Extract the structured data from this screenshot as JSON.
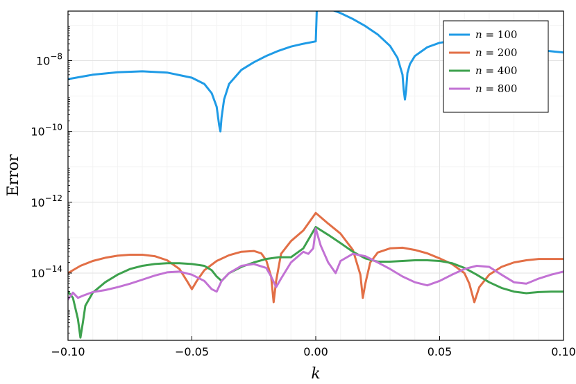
{
  "chart_data": {
    "type": "line",
    "title": "",
    "xlabel": "k",
    "ylabel": "Error",
    "yscale": "log",
    "xlim": [
      -0.1,
      0.1
    ],
    "ylim_log10": [
      -15.9,
      -6.6
    ],
    "grid": true,
    "legend_position": "top-right",
    "x_ticks": [
      -0.1,
      -0.05,
      0.0,
      0.05,
      0.1
    ],
    "x_tick_labels": [
      "−0.10",
      "−0.05",
      "0.00",
      "0.05",
      "0.10"
    ],
    "y_ticks": [
      {
        "base": "10",
        "exp": "−8",
        "value": 1e-08
      },
      {
        "base": "10",
        "exp": "−10",
        "value": 1e-10
      },
      {
        "base": "10",
        "exp": "−12",
        "value": 1e-12
      },
      {
        "base": "10",
        "exp": "−14",
        "value": 1e-14
      }
    ],
    "series": [
      {
        "name": "n = 100",
        "legend_var": "n",
        "legend_eq": " = 100",
        "color": "#1f9be6",
        "points": [
          [
            -0.1,
            3e-09
          ],
          [
            -0.09,
            4e-09
          ],
          [
            -0.08,
            4.7e-09
          ],
          [
            -0.07,
            5e-09
          ],
          [
            -0.06,
            4.6e-09
          ],
          [
            -0.05,
            3.3e-09
          ],
          [
            -0.045,
            2.2e-09
          ],
          [
            -0.042,
            1.2e-09
          ],
          [
            -0.04,
            5e-10
          ],
          [
            -0.039,
            1.5e-10
          ],
          [
            -0.0385,
            1e-10
          ],
          [
            -0.038,
            2.5e-10
          ],
          [
            -0.037,
            8e-10
          ],
          [
            -0.035,
            2.2e-09
          ],
          [
            -0.03,
            5.5e-09
          ],
          [
            -0.025,
            9e-09
          ],
          [
            -0.02,
            1.35e-08
          ],
          [
            -0.015,
            1.9e-08
          ],
          [
            -0.01,
            2.5e-08
          ],
          [
            -0.005,
            3e-08
          ],
          [
            0.0,
            3.5e-08
          ],
          [
            0.0005,
            4e-07
          ],
          [
            0.005,
            3e-07
          ],
          [
            0.01,
            2.2e-07
          ],
          [
            0.015,
            1.5e-07
          ],
          [
            0.02,
            9.5e-08
          ],
          [
            0.025,
            5.5e-08
          ],
          [
            0.03,
            2.6e-08
          ],
          [
            0.033,
            1.2e-08
          ],
          [
            0.035,
            4e-09
          ],
          [
            0.0355,
            1.5e-09
          ],
          [
            0.036,
            8e-10
          ],
          [
            0.0365,
            1.5e-09
          ],
          [
            0.037,
            4.5e-09
          ],
          [
            0.038,
            8e-09
          ],
          [
            0.04,
            1.35e-08
          ],
          [
            0.045,
            2.4e-08
          ],
          [
            0.05,
            3.2e-08
          ],
          [
            0.055,
            3.6e-08
          ],
          [
            0.06,
            3.6e-08
          ],
          [
            0.065,
            3.4e-08
          ],
          [
            0.07,
            3e-08
          ],
          [
            0.08,
            2.4e-08
          ],
          [
            0.09,
            2e-08
          ],
          [
            0.1,
            1.7e-08
          ]
        ]
      },
      {
        "name": "n = 200",
        "legend_var": "n",
        "legend_eq": " = 200",
        "color": "#e26f46",
        "points": [
          [
            -0.1,
            1e-14
          ],
          [
            -0.095,
            1.6e-14
          ],
          [
            -0.09,
            2.2e-14
          ],
          [
            -0.085,
            2.7e-14
          ],
          [
            -0.08,
            3.1e-14
          ],
          [
            -0.075,
            3.3e-14
          ],
          [
            -0.07,
            3.3e-14
          ],
          [
            -0.065,
            3e-14
          ],
          [
            -0.06,
            2.3e-14
          ],
          [
            -0.055,
            1.3e-14
          ],
          [
            -0.052,
            6e-15
          ],
          [
            -0.05,
            3.5e-15
          ],
          [
            -0.048,
            6e-15
          ],
          [
            -0.045,
            1.2e-14
          ],
          [
            -0.04,
            2.2e-14
          ],
          [
            -0.035,
            3.2e-14
          ],
          [
            -0.03,
            4e-14
          ],
          [
            -0.025,
            4.2e-14
          ],
          [
            -0.022,
            3.6e-14
          ],
          [
            -0.02,
            2.3e-14
          ],
          [
            -0.018,
            8e-15
          ],
          [
            -0.017,
            1.5e-15
          ],
          [
            -0.016,
            6e-15
          ],
          [
            -0.014,
            3.5e-14
          ],
          [
            -0.01,
            8e-14
          ],
          [
            -0.005,
            1.6e-13
          ],
          [
            0.0,
            5e-13
          ],
          [
            0.005,
            2.5e-13
          ],
          [
            0.01,
            1.3e-13
          ],
          [
            0.015,
            4.5e-14
          ],
          [
            0.018,
            9e-15
          ],
          [
            0.019,
            2e-15
          ],
          [
            0.02,
            5e-15
          ],
          [
            0.022,
            2e-14
          ],
          [
            0.025,
            3.8e-14
          ],
          [
            0.03,
            5e-14
          ],
          [
            0.035,
            5.2e-14
          ],
          [
            0.04,
            4.5e-14
          ],
          [
            0.045,
            3.6e-14
          ],
          [
            0.05,
            2.6e-14
          ],
          [
            0.055,
            1.8e-14
          ],
          [
            0.06,
            1e-14
          ],
          [
            0.062,
            5e-15
          ],
          [
            0.064,
            1.5e-15
          ],
          [
            0.066,
            4e-15
          ],
          [
            0.07,
            9e-15
          ],
          [
            0.075,
            1.5e-14
          ],
          [
            0.08,
            2e-14
          ],
          [
            0.085,
            2.3e-14
          ],
          [
            0.09,
            2.5e-14
          ],
          [
            0.1,
            2.5e-14
          ]
        ]
      },
      {
        "name": "n = 400",
        "legend_var": "n",
        "legend_eq": " = 400",
        "color": "#3da14d",
        "points": [
          [
            -0.1,
            3e-15
          ],
          [
            -0.098,
            2e-15
          ],
          [
            -0.096,
            5e-16
          ],
          [
            -0.095,
            1.5e-16
          ],
          [
            -0.094,
            4e-16
          ],
          [
            -0.093,
            1.2e-15
          ],
          [
            -0.09,
            2.8e-15
          ],
          [
            -0.085,
            5.5e-15
          ],
          [
            -0.08,
            9e-15
          ],
          [
            -0.075,
            1.3e-14
          ],
          [
            -0.07,
            1.6e-14
          ],
          [
            -0.065,
            1.8e-14
          ],
          [
            -0.06,
            1.9e-14
          ],
          [
            -0.055,
            1.9e-14
          ],
          [
            -0.05,
            1.8e-14
          ],
          [
            -0.045,
            1.6e-14
          ],
          [
            -0.042,
            1.2e-14
          ],
          [
            -0.04,
            8e-15
          ],
          [
            -0.038,
            6e-15
          ],
          [
            -0.035,
            1e-14
          ],
          [
            -0.03,
            1.5e-14
          ],
          [
            -0.025,
            2e-14
          ],
          [
            -0.02,
            2.5e-14
          ],
          [
            -0.015,
            2.8e-14
          ],
          [
            -0.01,
            2.8e-14
          ],
          [
            -0.005,
            5e-14
          ],
          [
            0.0,
            2e-13
          ],
          [
            0.005,
            1.2e-13
          ],
          [
            0.01,
            7e-14
          ],
          [
            0.015,
            4e-14
          ],
          [
            0.02,
            2.6e-14
          ],
          [
            0.025,
            2.1e-14
          ],
          [
            0.03,
            2.1e-14
          ],
          [
            0.035,
            2.2e-14
          ],
          [
            0.04,
            2.3e-14
          ],
          [
            0.045,
            2.3e-14
          ],
          [
            0.05,
            2.2e-14
          ],
          [
            0.055,
            1.9e-14
          ],
          [
            0.06,
            1.4e-14
          ],
          [
            0.065,
            9e-15
          ],
          [
            0.07,
            5.5e-15
          ],
          [
            0.075,
            3.8e-15
          ],
          [
            0.08,
            3e-15
          ],
          [
            0.085,
            2.7e-15
          ],
          [
            0.09,
            2.9e-15
          ],
          [
            0.095,
            3e-15
          ],
          [
            0.1,
            3e-15
          ]
        ]
      },
      {
        "name": "n = 800",
        "legend_var": "n",
        "legend_eq": " = 800",
        "color": "#c272d4",
        "points": [
          [
            -0.1,
            1.8e-15
          ],
          [
            -0.098,
            2.8e-15
          ],
          [
            -0.096,
            2e-15
          ],
          [
            -0.094,
            2.3e-15
          ],
          [
            -0.09,
            2.9e-15
          ],
          [
            -0.085,
            3.3e-15
          ],
          [
            -0.08,
            4e-15
          ],
          [
            -0.075,
            5e-15
          ],
          [
            -0.07,
            6.5e-15
          ],
          [
            -0.065,
            8.5e-15
          ],
          [
            -0.06,
            1.05e-14
          ],
          [
            -0.055,
            1.1e-14
          ],
          [
            -0.05,
            9e-15
          ],
          [
            -0.045,
            6e-15
          ],
          [
            -0.042,
            3.5e-15
          ],
          [
            -0.04,
            3e-15
          ],
          [
            -0.038,
            6e-15
          ],
          [
            -0.035,
            1e-14
          ],
          [
            -0.03,
            1.6e-14
          ],
          [
            -0.025,
            1.8e-14
          ],
          [
            -0.02,
            1.4e-14
          ],
          [
            -0.018,
            8e-15
          ],
          [
            -0.016,
            4e-15
          ],
          [
            -0.014,
            7e-15
          ],
          [
            -0.01,
            2e-14
          ],
          [
            -0.005,
            4e-14
          ],
          [
            -0.003,
            3.5e-14
          ],
          [
            -0.001,
            5e-14
          ],
          [
            0.0,
            1.8e-13
          ],
          [
            0.002,
            6e-14
          ],
          [
            0.005,
            2e-14
          ],
          [
            0.008,
            1e-14
          ],
          [
            0.01,
            2.2e-14
          ],
          [
            0.015,
            3.5e-14
          ],
          [
            0.02,
            3e-14
          ],
          [
            0.025,
            2e-14
          ],
          [
            0.03,
            1.3e-14
          ],
          [
            0.035,
            8e-15
          ],
          [
            0.04,
            5.5e-15
          ],
          [
            0.045,
            4.5e-15
          ],
          [
            0.05,
            6e-15
          ],
          [
            0.055,
            9e-15
          ],
          [
            0.06,
            1.3e-14
          ],
          [
            0.065,
            1.6e-14
          ],
          [
            0.07,
            1.5e-14
          ],
          [
            0.075,
            9e-15
          ],
          [
            0.08,
            5.5e-15
          ],
          [
            0.085,
            5e-15
          ],
          [
            0.09,
            7e-15
          ],
          [
            0.095,
            9e-15
          ],
          [
            0.1,
            1.1e-14
          ]
        ]
      }
    ]
  }
}
